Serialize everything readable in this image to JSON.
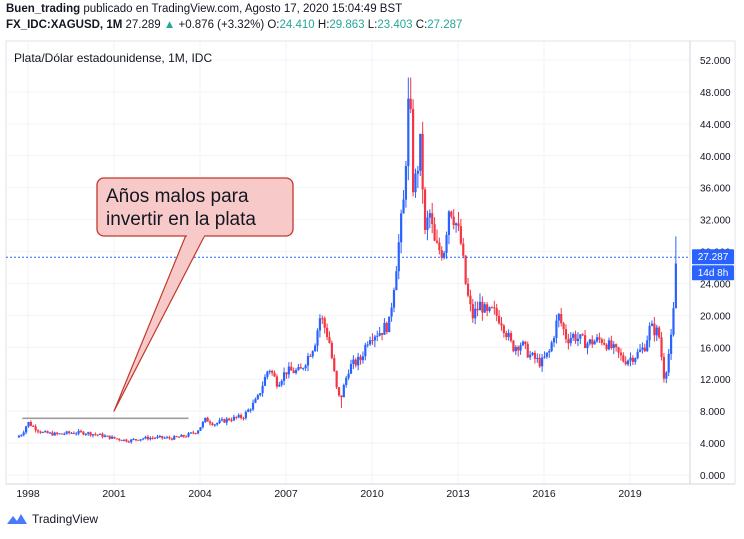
{
  "header": {
    "user": "Buen_trading",
    "published_text": "publicado en TradingView.com, Agosto 17, 2020 15:04:49 BST",
    "symbol": "FX_IDC:XAGUSD, 1M",
    "price": "27.289",
    "change": "+0.876 (+3.32%)",
    "open_label": "O:",
    "open": "24.410",
    "high_label": "H:",
    "high": "29.863",
    "low_label": "L:",
    "low": "23.403",
    "close_label": "C:",
    "close": "27.287"
  },
  "footer": {
    "brand": "TradingView"
  },
  "colors": {
    "up": "#2962ff",
    "down": "#f23645",
    "price_line": "#2962ff",
    "callout_fill": "#f8c9c9",
    "callout_stroke": "#c0392b",
    "gray_line": "#9e9e9e"
  },
  "chart_data": {
    "type": "candlestick",
    "title": "Plata/Dólar estadounidense, 1M, IDC",
    "ylim": [
      0,
      54
    ],
    "yticks": [
      0,
      4,
      8,
      12,
      16,
      20,
      24,
      28,
      32,
      36,
      40,
      44,
      48,
      52
    ],
    "ytick_labels": [
      "0.000",
      "4.000",
      "8.000",
      "12.000",
      "16.000",
      "20.000",
      "24.000",
      "28.000",
      "32.000",
      "36.000",
      "40.000",
      "44.000",
      "48.000",
      "52.000"
    ],
    "xlim": [
      1997.5,
      2021.3
    ],
    "xticks": [
      1998,
      2001,
      2004,
      2007,
      2010,
      2013,
      2016,
      2019
    ],
    "xtick_labels": [
      "1998",
      "2001",
      "2004",
      "2007",
      "2010",
      "2013",
      "2016",
      "2019"
    ],
    "current_price": 27.287,
    "current_price_label": "27.287",
    "countdown_label": "14d 8h",
    "annotation": {
      "text_line1": "Años malos para",
      "text_line2": "invertir en la plata",
      "pointer_x": 2001,
      "pointer_y": 8.0
    },
    "reference_line": {
      "x_start": 1997.8,
      "x_end": 2003.6,
      "y": 7.1
    },
    "close_path": [
      [
        1997.6,
        4.7
      ],
      [
        1997.8,
        5.2
      ],
      [
        1998.0,
        6.6
      ],
      [
        1998.2,
        6.0
      ],
      [
        1998.5,
        5.3
      ],
      [
        1999.0,
        5.1
      ],
      [
        1999.5,
        5.3
      ],
      [
        2000.0,
        5.3
      ],
      [
        2000.5,
        5.0
      ],
      [
        2001.0,
        4.6
      ],
      [
        2001.5,
        4.3
      ],
      [
        2002.0,
        4.6
      ],
      [
        2002.5,
        4.7
      ],
      [
        2003.0,
        4.6
      ],
      [
        2003.5,
        4.9
      ],
      [
        2003.9,
        5.5
      ],
      [
        2004.2,
        7.0
      ],
      [
        2004.5,
        6.4
      ],
      [
        2005.0,
        7.0
      ],
      [
        2005.5,
        7.3
      ],
      [
        2006.0,
        9.5
      ],
      [
        2006.4,
        13.5
      ],
      [
        2006.7,
        11.5
      ],
      [
        2007.0,
        13.0
      ],
      [
        2007.5,
        13.0
      ],
      [
        2008.0,
        16.5
      ],
      [
        2008.2,
        20.0
      ],
      [
        2008.5,
        17.0
      ],
      [
        2008.8,
        10.0
      ],
      [
        2008.9,
        9.5
      ],
      [
        2009.2,
        13.5
      ],
      [
        2009.6,
        14.5
      ],
      [
        2009.9,
        17.5
      ],
      [
        2010.3,
        18.0
      ],
      [
        2010.6,
        19.0
      ],
      [
        2010.9,
        28.0
      ],
      [
        2011.1,
        34.0
      ],
      [
        2011.3,
        48.5
      ],
      [
        2011.45,
        35.0
      ],
      [
        2011.6,
        39.0
      ],
      [
        2011.7,
        41.5
      ],
      [
        2011.85,
        30.0
      ],
      [
        2012.0,
        33.0
      ],
      [
        2012.2,
        28.5
      ],
      [
        2012.5,
        28.0
      ],
      [
        2012.7,
        34.0
      ],
      [
        2012.9,
        32.0
      ],
      [
        2013.1,
        29.0
      ],
      [
        2013.3,
        23.0
      ],
      [
        2013.5,
        19.8
      ],
      [
        2013.8,
        21.5
      ],
      [
        2014.0,
        20.0
      ],
      [
        2014.2,
        20.5
      ],
      [
        2014.5,
        19.5
      ],
      [
        2014.9,
        16.0
      ],
      [
        2015.2,
        16.5
      ],
      [
        2015.5,
        15.0
      ],
      [
        2015.9,
        14.0
      ],
      [
        2016.2,
        15.5
      ],
      [
        2016.5,
        20.0
      ],
      [
        2016.8,
        17.0
      ],
      [
        2017.0,
        17.5
      ],
      [
        2017.5,
        16.5
      ],
      [
        2018.0,
        17.0
      ],
      [
        2018.5,
        15.5
      ],
      [
        2018.8,
        14.3
      ],
      [
        2019.2,
        15.0
      ],
      [
        2019.5,
        16.0
      ],
      [
        2019.7,
        18.5
      ],
      [
        2020.0,
        17.8
      ],
      [
        2020.2,
        12.0
      ],
      [
        2020.35,
        15.2
      ],
      [
        2020.5,
        18.3
      ],
      [
        2020.55,
        24.4
      ],
      [
        2020.62,
        27.3
      ]
    ],
    "spikes": [
      {
        "x": 2020.2,
        "low": 11.6
      },
      {
        "x": 2020.62,
        "high": 29.9
      },
      {
        "x": 2011.3,
        "high": 49.8
      },
      {
        "x": 2008.9,
        "low": 8.4
      }
    ]
  }
}
